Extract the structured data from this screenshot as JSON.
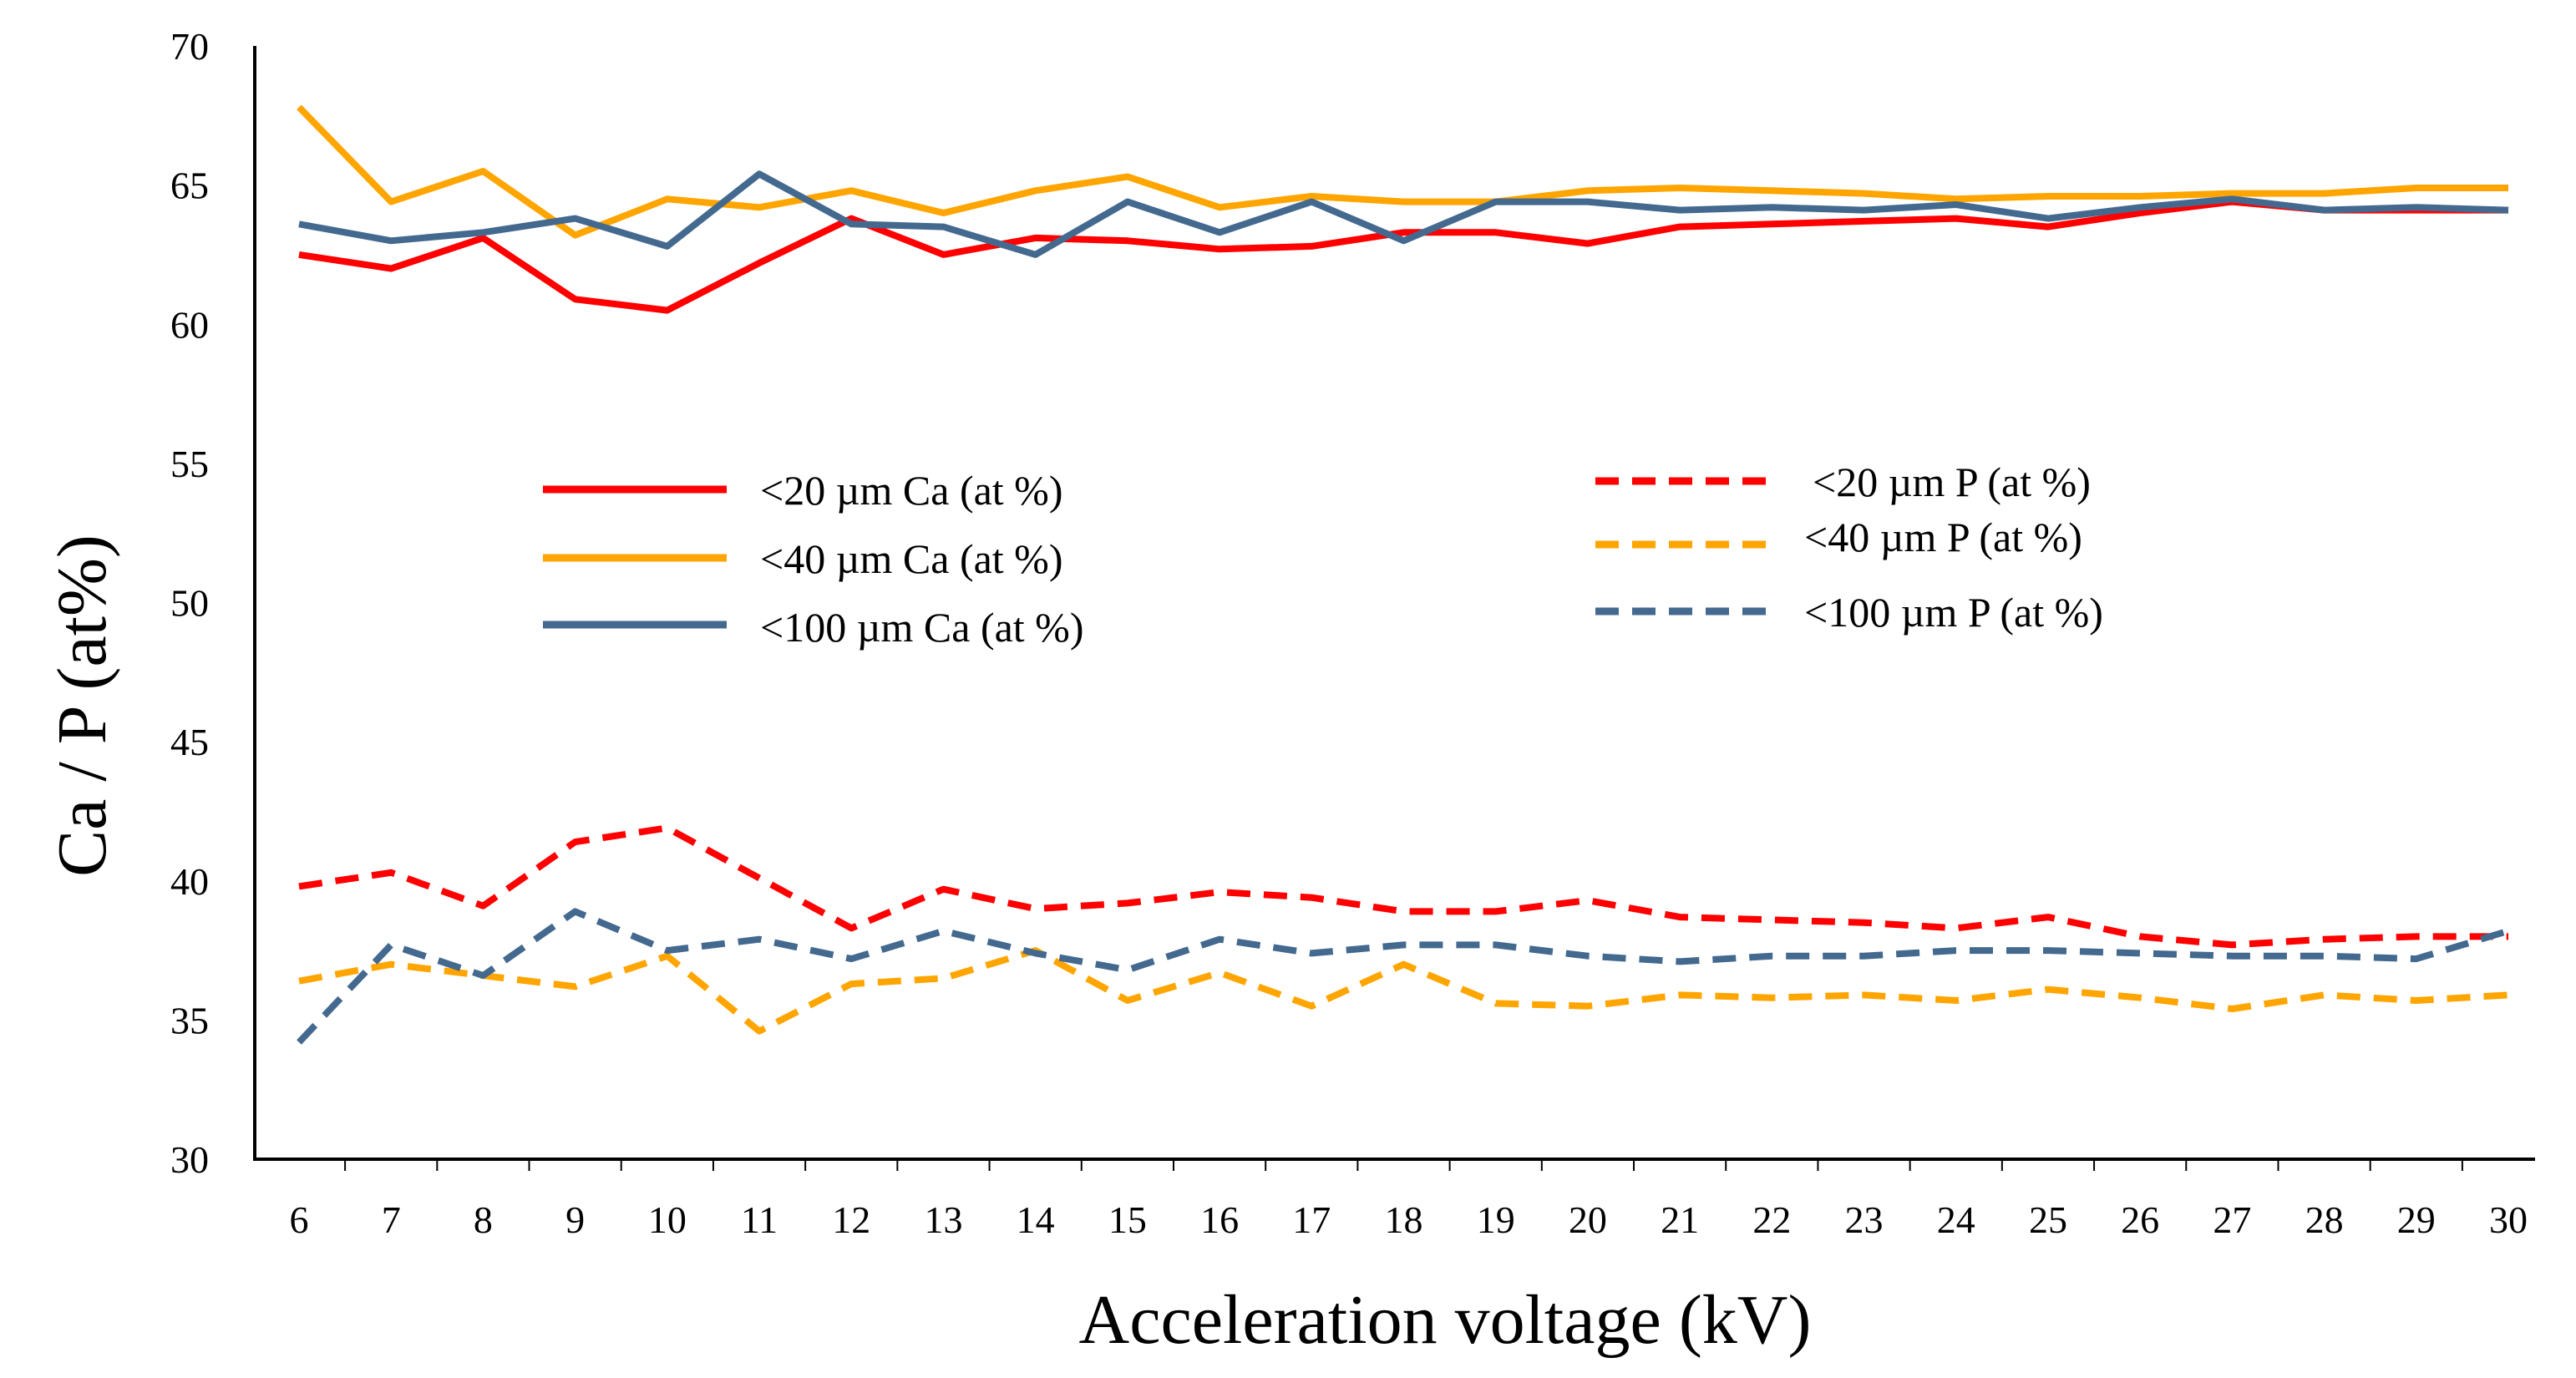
{
  "chart_data": {
    "type": "line",
    "title": "",
    "xlabel": "Acceleration voltage (kV)",
    "ylabel": "Ca / P (at%)",
    "ylim": [
      30,
      70
    ],
    "yticks": [
      30,
      35,
      40,
      45,
      50,
      55,
      60,
      65,
      70
    ],
    "x": [
      6,
      7,
      8,
      9,
      10,
      11,
      12,
      13,
      14,
      15,
      16,
      17,
      18,
      19,
      20,
      21,
      22,
      23,
      24,
      25,
      26,
      27,
      28,
      29,
      30
    ],
    "grid": false,
    "series": [
      {
        "name": "<20 µm Ca (at %)",
        "color": "#FF0000",
        "dash": "solid",
        "values": [
          62.5,
          62.0,
          63.1,
          60.9,
          60.5,
          62.2,
          63.8,
          62.5,
          63.1,
          63.0,
          62.7,
          62.8,
          63.3,
          63.3,
          62.9,
          63.5,
          63.6,
          63.7,
          63.8,
          63.5,
          64.0,
          64.4,
          64.1,
          64.1,
          64.1
        ]
      },
      {
        "name": "<40 µm Ca (at %)",
        "color": "#FFA500",
        "dash": "solid",
        "values": [
          67.8,
          64.4,
          65.5,
          63.2,
          64.5,
          64.2,
          64.8,
          64.0,
          64.8,
          65.3,
          64.2,
          64.6,
          64.4,
          64.4,
          64.8,
          64.9,
          64.8,
          64.7,
          64.5,
          64.6,
          64.6,
          64.7,
          64.7,
          64.9,
          64.9
        ]
      },
      {
        "name": "<100 µm Ca (at %)",
        "color": "#44698F",
        "dash": "solid",
        "values": [
          63.6,
          63.0,
          63.3,
          63.8,
          62.8,
          65.4,
          63.6,
          63.5,
          62.5,
          64.4,
          63.3,
          64.4,
          63.0,
          64.4,
          64.4,
          64.1,
          64.2,
          64.1,
          64.3,
          63.8,
          64.2,
          64.5,
          64.1,
          64.2,
          64.1
        ]
      },
      {
        "name": "<20 µm P (at %)",
        "color": "#FF0000",
        "dash": "dashed",
        "values": [
          39.8,
          40.3,
          39.1,
          41.4,
          41.9,
          40.1,
          38.3,
          39.7,
          39.0,
          39.2,
          39.6,
          39.4,
          38.9,
          38.9,
          39.3,
          38.7,
          38.6,
          38.5,
          38.3,
          38.7,
          38.0,
          37.7,
          37.9,
          38.0,
          38.0
        ]
      },
      {
        "name": "<40 µm P (at %)",
        "color": "#FFA500",
        "dash": "dashed",
        "values": [
          36.4,
          37.0,
          36.6,
          36.2,
          37.3,
          34.6,
          36.3,
          36.5,
          37.5,
          35.7,
          36.7,
          35.5,
          37.0,
          35.6,
          35.5,
          35.9,
          35.8,
          35.9,
          35.7,
          36.1,
          35.8,
          35.4,
          35.9,
          35.7,
          35.9
        ]
      },
      {
        "name": "<100 µm P (at %)",
        "color": "#44698F",
        "dash": "dashed",
        "values": [
          34.2,
          37.7,
          36.6,
          38.9,
          37.5,
          37.9,
          37.2,
          38.2,
          37.4,
          36.8,
          37.9,
          37.4,
          37.7,
          37.7,
          37.3,
          37.1,
          37.3,
          37.3,
          37.5,
          37.5,
          37.4,
          37.3,
          37.3,
          37.2,
          38.2
        ]
      }
    ],
    "legend": "center"
  }
}
